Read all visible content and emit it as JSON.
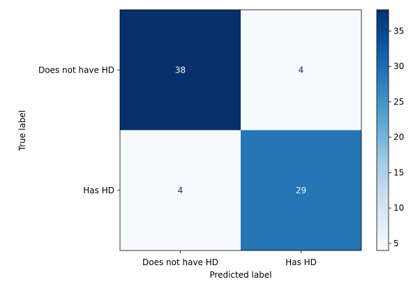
{
  "chart_data": {
    "type": "heatmap",
    "title": "",
    "xlabel": "Predicted label",
    "ylabel": "True label",
    "x_categories": [
      "Does not have HD",
      "Has HD"
    ],
    "y_categories": [
      "Does not have HD",
      "Has HD"
    ],
    "values": [
      [
        38,
        4
      ],
      [
        4,
        29
      ]
    ],
    "colormap": "Blues",
    "colorbar": {
      "range": [
        4,
        38
      ],
      "ticks": [
        5,
        10,
        15,
        20,
        25,
        30,
        35
      ]
    },
    "colors": {
      "low": "#f7fbff",
      "high": "#08306b",
      "text_light": "#f7fbff",
      "text_dark": "#08306b"
    }
  }
}
